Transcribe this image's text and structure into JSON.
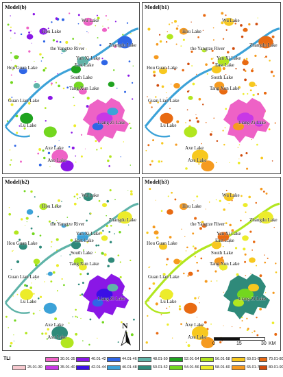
{
  "panels": [
    {
      "title": "Model(b)"
    },
    {
      "title": "Model(b1)"
    },
    {
      "title": "Model(b2)"
    },
    {
      "title": "Model(b3)"
    }
  ],
  "labels": {
    "wu": "Wu Lake",
    "hou": "Hou Lake",
    "zhangdu": "Zhangdu Lake",
    "river": "the Yangtze River",
    "yanxi": "Yan Xi Lake",
    "east": "East Lake",
    "houguan": "Hou Guan Lake",
    "south": "South Lake",
    "tangxun": "Tang Xun Lake",
    "guanlian": "Guan Lian Lake",
    "liangzi": "Liang Zi Lake",
    "lu": "Lu Lake",
    "axe": "Axe Lake"
  },
  "north_label": "N",
  "scale": {
    "ticks": [
      "0",
      "15",
      "30"
    ],
    "unit": "KM"
  },
  "legend": {
    "title": "TLI",
    "items": [
      {
        "label": "25.01-30",
        "color": "#f7c9cf"
      },
      {
        "label": "30.01-35",
        "color": "#ee62c6"
      },
      {
        "label": "35.01-40",
        "color": "#c838e6"
      },
      {
        "label": "40.01-42",
        "color": "#8a17e6"
      },
      {
        "label": "42.01-44",
        "color": "#3a0fe6"
      },
      {
        "label": "44.01-46",
        "color": "#2f66e6"
      },
      {
        "label": "46.01-48",
        "color": "#3ca2d8"
      },
      {
        "label": "48.01-50",
        "color": "#5fb3a8"
      },
      {
        "label": "50.01-52",
        "color": "#2f8a7a"
      },
      {
        "label": "52.01-54",
        "color": "#1fa31f"
      },
      {
        "label": "54.01-56",
        "color": "#73d71f"
      },
      {
        "label": "56.01-58",
        "color": "#b2e61f"
      },
      {
        "label": "58.01-60",
        "color": "#ecec2a"
      },
      {
        "label": "60.01-65",
        "color": "#f7c81f"
      },
      {
        "label": "65.01-70",
        "color": "#f59a1f"
      },
      {
        "label": "70.01-80",
        "color": "#e86a12"
      },
      {
        "label": "80.01-90",
        "color": "#d04b0c"
      }
    ]
  }
}
